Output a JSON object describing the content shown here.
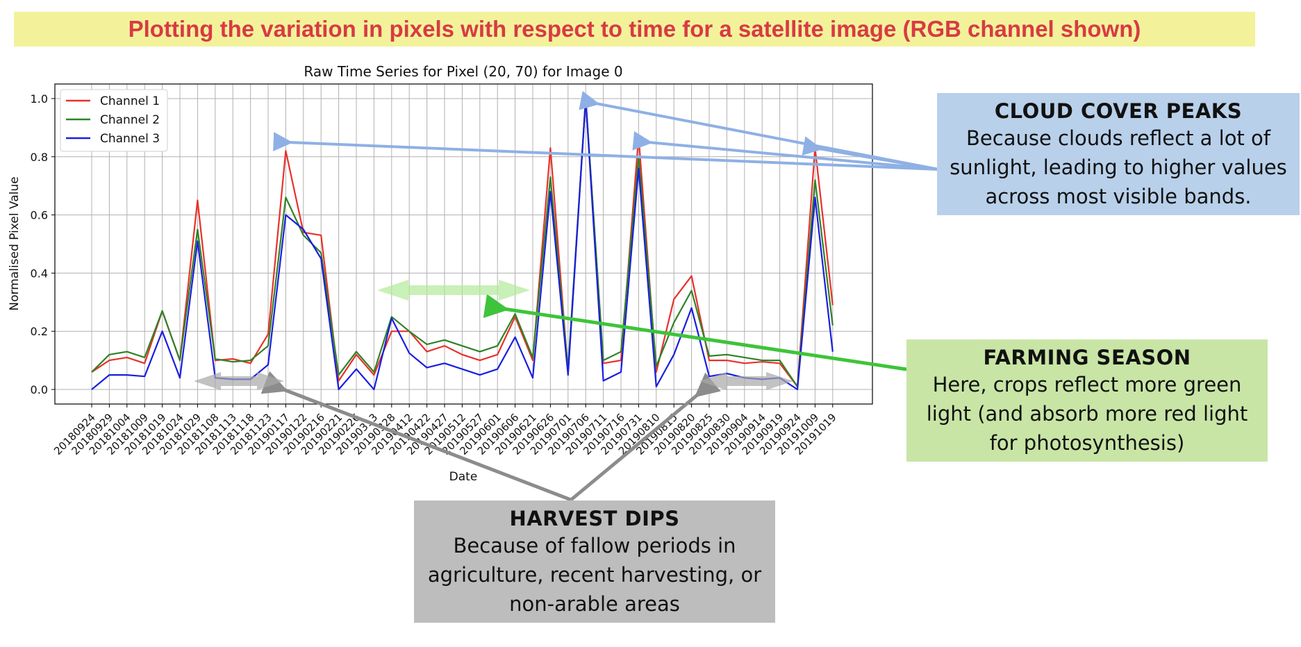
{
  "banner": {
    "text": "Plotting the variation in pixels with respect to time for a satellite image (RGB channel shown)"
  },
  "callouts": {
    "cloud": {
      "title": "CLOUD COVER PEAKS",
      "lines": [
        "Because clouds reflect a lot of",
        "sunlight, leading to higher values",
        "across most visible bands."
      ]
    },
    "farming": {
      "title": "FARMING SEASON",
      "lines": [
        "Here, crops reflect more green",
        "light (and absorb more red light",
        "for photosynthesis)"
      ]
    },
    "harvest": {
      "title": "HARVEST  DIPS",
      "lines": [
        "Because of fallow periods in",
        "agriculture, recent harvesting, or",
        "non-arable areas"
      ]
    }
  },
  "colors": {
    "banner_bg": "#f3f29a",
    "banner_text": "#d83a44",
    "cloud": "#b8d0ea",
    "farming": "#c8e5a6",
    "harvest": "#bdbdbd"
  },
  "chart_data": {
    "type": "line",
    "title": "Raw Time Series for Pixel (20, 70) for Image 0",
    "xlabel": "Date",
    "ylabel": "Normalised Pixel Value",
    "ylim": [
      -0.05,
      1.05
    ],
    "yticks": [
      "0.0",
      "0.2",
      "0.4",
      "0.6",
      "0.8",
      "1.0"
    ],
    "grid": true,
    "legend": "top-left",
    "x": [
      "20180924",
      "20180929",
      "20181004",
      "20181009",
      "20181019",
      "20181024",
      "20181029",
      "20181108",
      "20181113",
      "20181118",
      "20181123",
      "20190117",
      "20190122",
      "20190216",
      "20190221",
      "20190226",
      "20190313",
      "20190328",
      "20190412",
      "20190422",
      "20190427",
      "20190512",
      "20190527",
      "20190601",
      "20190606",
      "20190621",
      "20190626",
      "20190701",
      "20190706",
      "20190711",
      "20190716",
      "20190731",
      "20190810",
      "20190815",
      "20190820",
      "20190825",
      "20190830",
      "20190904",
      "20190914",
      "20190919",
      "20190924",
      "20191009",
      "20191019"
    ],
    "series": [
      {
        "name": "Channel 1",
        "color": "#e8312a",
        "values": [
          0.06,
          0.1,
          0.11,
          0.09,
          0.27,
          0.1,
          0.65,
          0.1,
          0.105,
          0.09,
          0.19,
          0.82,
          0.54,
          0.53,
          0.03,
          0.12,
          0.05,
          0.2,
          0.2,
          0.13,
          0.15,
          0.12,
          0.1,
          0.12,
          0.25,
          0.1,
          0.83,
          0.06,
          1.0,
          0.09,
          0.1,
          0.87,
          0.06,
          0.31,
          0.39,
          0.1,
          0.1,
          0.09,
          0.095,
          0.09,
          0.01,
          0.83,
          0.29
        ]
      },
      {
        "name": "Channel 2",
        "color": "#2f8226",
        "values": [
          0.06,
          0.12,
          0.13,
          0.11,
          0.27,
          0.1,
          0.55,
          0.105,
          0.095,
          0.1,
          0.15,
          0.66,
          0.53,
          0.47,
          0.05,
          0.13,
          0.06,
          0.25,
          0.2,
          0.155,
          0.17,
          0.15,
          0.13,
          0.15,
          0.26,
          0.11,
          0.73,
          0.07,
          1.0,
          0.1,
          0.13,
          0.8,
          0.08,
          0.23,
          0.34,
          0.115,
          0.12,
          0.11,
          0.1,
          0.1,
          0.01,
          0.72,
          0.22
        ]
      },
      {
        "name": "Channel 3",
        "color": "#1a1ee0",
        "values": [
          0.0,
          0.05,
          0.05,
          0.045,
          0.2,
          0.04,
          0.51,
          0.04,
          0.035,
          0.035,
          0.085,
          0.6,
          0.55,
          0.45,
          0.0,
          0.07,
          0.0,
          0.245,
          0.125,
          0.075,
          0.09,
          0.07,
          0.05,
          0.07,
          0.18,
          0.04,
          0.68,
          0.05,
          1.0,
          0.03,
          0.06,
          0.76,
          0.01,
          0.12,
          0.28,
          0.045,
          0.055,
          0.04,
          0.035,
          0.04,
          0.0,
          0.66,
          0.13
        ]
      }
    ]
  }
}
